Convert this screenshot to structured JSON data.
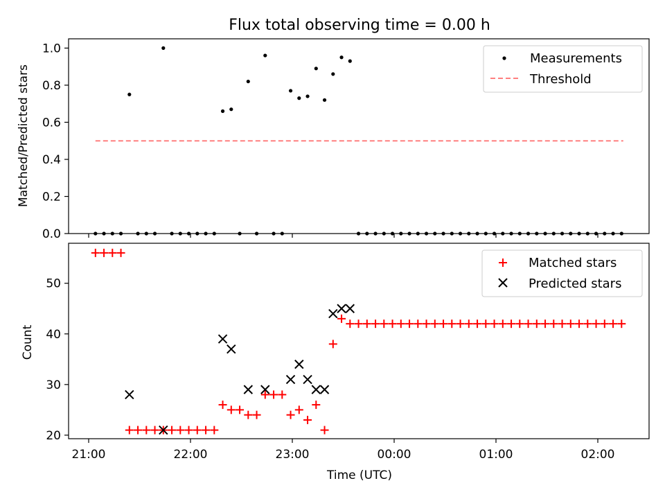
{
  "title": "Flux total observing time = 0.00 h",
  "colors": {
    "measurement": "#000000",
    "threshold": "#ff7f7f",
    "matched": "#ff0000",
    "predicted": "#000000"
  },
  "chart_data": [
    {
      "type": "scatter",
      "panel": "top",
      "ylabel": "Matched/Predicted stars",
      "ylim": [
        0,
        1.05
      ],
      "yticks": [
        0.0,
        0.2,
        0.4,
        0.6,
        0.8,
        1.0
      ],
      "ytick_labels": [
        "0.0",
        "0.2",
        "0.4",
        "0.6",
        "0.8",
        "1.0"
      ],
      "legend": {
        "placement": "top-right",
        "entries": [
          "Measurements",
          "Threshold"
        ]
      },
      "threshold": {
        "name": "Threshold",
        "value": 0.5,
        "x_range": [
          "21:04",
          "02:15"
        ]
      },
      "series": [
        {
          "name": "Measurements",
          "x": [
            "21:04",
            "21:09",
            "21:14",
            "21:19",
            "21:24",
            "21:29",
            "21:34",
            "21:39",
            "21:44",
            "21:49",
            "21:54",
            "21:59",
            "22:04",
            "22:09",
            "22:14",
            "22:19",
            "22:24",
            "22:29",
            "22:34",
            "22:39",
            "22:44",
            "22:49",
            "22:54",
            "22:59",
            "23:04",
            "23:09",
            "23:14",
            "23:19",
            "23:24",
            "23:29",
            "23:34",
            "23:39",
            "23:44",
            "23:49",
            "23:54",
            "23:59",
            "00:04",
            "00:09",
            "00:14",
            "00:19",
            "00:24",
            "00:29",
            "00:34",
            "00:39",
            "00:44",
            "00:49",
            "00:54",
            "00:59",
            "01:04",
            "01:09",
            "01:14",
            "01:19",
            "01:24",
            "01:29",
            "01:34",
            "01:39",
            "01:44",
            "01:49",
            "01:54",
            "01:59",
            "02:04",
            "02:09",
            "02:14"
          ],
          "y": [
            0,
            0,
            0,
            0,
            0.75,
            0,
            0,
            0,
            1.0,
            0,
            0,
            0,
            0,
            0,
            0,
            0.66,
            0.67,
            0,
            0.82,
            0,
            0.96,
            0,
            0,
            0.77,
            0.73,
            0.74,
            0.89,
            0.72,
            0.86,
            0.95,
            0.93,
            0,
            0,
            0,
            0,
            0,
            0,
            0,
            0,
            0,
            0,
            0,
            0,
            0,
            0,
            0,
            0,
            0,
            0,
            0,
            0,
            0,
            0,
            0,
            0,
            0,
            0,
            0,
            0,
            0,
            0,
            0,
            0
          ]
        }
      ]
    },
    {
      "type": "scatter",
      "panel": "bottom",
      "xlabel": "Time (UTC)",
      "ylabel": "Count",
      "ylim": [
        19.3,
        57.9
      ],
      "yticks": [
        20,
        30,
        40,
        50
      ],
      "ytick_labels": [
        "20",
        "30",
        "40",
        "50"
      ],
      "xticks": [
        "21:00",
        "22:00",
        "23:00",
        "00:00",
        "01:00",
        "02:00"
      ],
      "legend": {
        "placement": "top-right",
        "entries": [
          "Matched stars",
          "Predicted stars"
        ]
      },
      "series": [
        {
          "name": "Matched stars",
          "x": [
            "21:04",
            "21:09",
            "21:14",
            "21:19",
            "21:24",
            "21:29",
            "21:34",
            "21:39",
            "21:44",
            "21:49",
            "21:54",
            "21:59",
            "22:04",
            "22:09",
            "22:14",
            "22:19",
            "22:24",
            "22:29",
            "22:34",
            "22:39",
            "22:44",
            "22:49",
            "22:54",
            "22:59",
            "23:04",
            "23:09",
            "23:14",
            "23:19",
            "23:24",
            "23:29",
            "23:34",
            "23:39",
            "23:44",
            "23:49",
            "23:54",
            "23:59",
            "00:04",
            "00:09",
            "00:14",
            "00:19",
            "00:24",
            "00:29",
            "00:34",
            "00:39",
            "00:44",
            "00:49",
            "00:54",
            "00:59",
            "01:04",
            "01:09",
            "01:14",
            "01:19",
            "01:24",
            "01:29",
            "01:34",
            "01:39",
            "01:44",
            "01:49",
            "01:54",
            "01:59",
            "02:04",
            "02:09",
            "02:14"
          ],
          "y": [
            56,
            56,
            56,
            56,
            21,
            21,
            21,
            21,
            21,
            21,
            21,
            21,
            21,
            21,
            21,
            26,
            25,
            25,
            24,
            24,
            28,
            28,
            28,
            24,
            25,
            23,
            26,
            21,
            38,
            43,
            42,
            42,
            42,
            42,
            42,
            42,
            42,
            42,
            42,
            42,
            42,
            42,
            42,
            42,
            42,
            42,
            42,
            42,
            42,
            42,
            42,
            42,
            42,
            42,
            42,
            42,
            42,
            42,
            42,
            42,
            42,
            42,
            42
          ]
        },
        {
          "name": "Predicted stars",
          "x": [
            "21:24",
            "21:44",
            "22:19",
            "22:24",
            "22:34",
            "22:44",
            "22:59",
            "23:04",
            "23:09",
            "23:14",
            "23:19",
            "23:24",
            "23:29",
            "23:34"
          ],
          "y": [
            28,
            21,
            39,
            37,
            29,
            29,
            31,
            34,
            31,
            29,
            29,
            44,
            45,
            45
          ]
        }
      ]
    }
  ]
}
